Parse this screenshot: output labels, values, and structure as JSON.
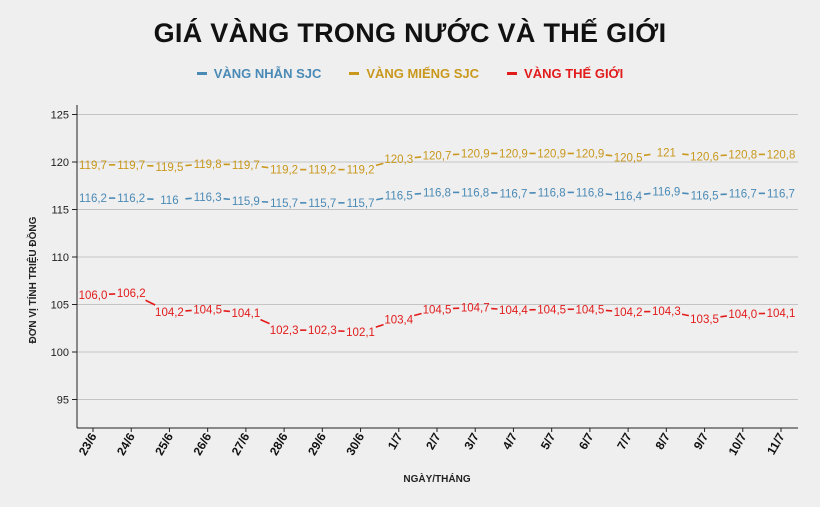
{
  "title": "GIÁ VÀNG TRONG NƯỚC VÀ THẾ GIỚI",
  "colors": {
    "nhan": "#4a8ab6",
    "mieng": "#c9981d",
    "thegioi": "#e21b1b"
  },
  "chart_data": {
    "type": "line",
    "title": "GIÁ VÀNG TRONG NƯỚC VÀ THẾ GIỚI",
    "xlabel": "NGÀY/THÁNG",
    "ylabel": "ĐƠN VỊ TÍNH TRIỆU ĐỒNG",
    "ylim": [
      92,
      126
    ],
    "yticks": [
      "95",
      "100",
      "105",
      "110",
      "115",
      "120",
      "125"
    ],
    "ytick_values": [
      95,
      100,
      105,
      110,
      115,
      120,
      125
    ],
    "grid": true,
    "legend": "top-center",
    "categories": [
      "23/6",
      "24/6",
      "25/6",
      "26/6",
      "27/6",
      "28/6",
      "29/6",
      "30/6",
      "1/7",
      "2/7",
      "3/7",
      "4/7",
      "5/7",
      "6/7",
      "7/7",
      "8/7",
      "9/7",
      "10/7",
      "11/7"
    ],
    "series": [
      {
        "name": "VÀNG NHẪN SJC",
        "color": "#4a8ab6",
        "values": [
          116.2,
          116.2,
          116.0,
          116.3,
          115.9,
          115.7,
          115.7,
          115.7,
          116.5,
          116.8,
          116.8,
          116.7,
          116.8,
          116.8,
          116.4,
          116.9,
          116.5,
          116.7,
          116.7
        ],
        "labels": [
          "116,2",
          "116,2",
          "116",
          "116,3",
          "115,9",
          "115,7",
          "115,7",
          "115,7",
          "116,5",
          "116,8",
          "116,8",
          "116,7",
          "116,8",
          "116,8",
          "116,4",
          "116,9",
          "116,5",
          "116,7",
          "116,7"
        ]
      },
      {
        "name": "VÀNG MIẾNG SJC",
        "color": "#c9981d",
        "values": [
          119.7,
          119.7,
          119.5,
          119.8,
          119.7,
          119.2,
          119.2,
          119.2,
          120.3,
          120.7,
          120.9,
          120.9,
          120.9,
          120.9,
          120.5,
          121.0,
          120.6,
          120.8,
          120.8
        ],
        "labels": [
          "119,7",
          "119,7",
          "119,5",
          "119,8",
          "119,7",
          "119,2",
          "119,2",
          "119,2",
          "120,3",
          "120,7",
          "120,9",
          "120,9",
          "120,9",
          "120,9",
          "120,5",
          "121",
          "120,6",
          "120,8",
          "120,8"
        ]
      },
      {
        "name": "VÀNG THẾ GIỚI",
        "color": "#e21b1b",
        "values": [
          106.0,
          106.2,
          104.2,
          104.5,
          104.1,
          102.3,
          102.3,
          102.1,
          103.4,
          104.5,
          104.7,
          104.4,
          104.5,
          104.5,
          104.2,
          104.3,
          103.5,
          104.0,
          104.1
        ],
        "labels": [
          "106,0",
          "106,2",
          "104,2",
          "104,5",
          "104,1",
          "102,3",
          "102,3",
          "102,1",
          "103,4",
          "104,5",
          "104,7",
          "104,4",
          "104,5",
          "104,5",
          "104,2",
          "104,3",
          "103,5",
          "104,0",
          "104,1"
        ]
      }
    ]
  }
}
